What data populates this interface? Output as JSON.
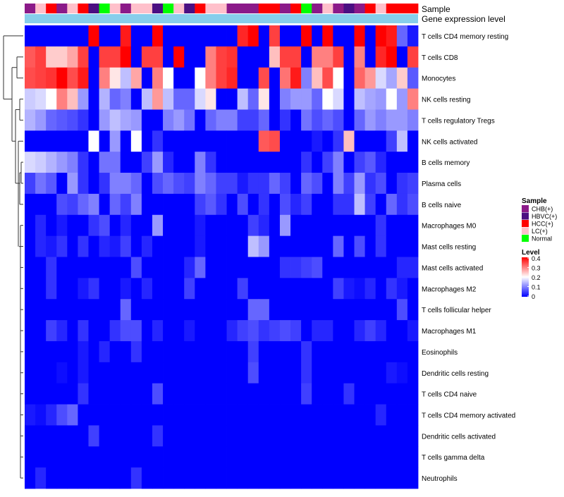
{
  "chart_data": {
    "type": "heatmap",
    "annotation_rows": [
      "Sample",
      "Gene expression level"
    ],
    "rows": [
      "T cells CD4 memory resting",
      "T cells CD8",
      "Monocytes",
      "NK cells resting",
      "T cells regulatory  Tregs",
      "NK cells activated",
      "B cells memory",
      "Plasma cells",
      "B cells naive",
      "Macrophages M0",
      "Mast cells resting",
      "Mast cells activated",
      "Macrophages M2",
      "T cells follicular helper",
      "Macrophages M1",
      "Eosinophils",
      "Dendritic cells resting",
      "T cells CD4 naive",
      "T cells CD4 memory activated",
      "Dendritic cells activated",
      "T cells gamma delta",
      "Neutrophils"
    ],
    "sample_colors": {
      "CHB(+)": "#8B1A89",
      "HBVC(+)": "#4B0F82",
      "HCC(+)": "#FF0000",
      "LC(+)": "#FFC0CB",
      "Normal": "#00FF00"
    },
    "gene_level_color": "#87CEEB",
    "sample_annotation": [
      "CHB(+)",
      "LC(+)",
      "HCC(+)",
      "CHB(+)",
      "LC(+)",
      "HCC(+)",
      "HBVC(+)",
      "Normal",
      "LC(+)",
      "CHB(+)",
      "LC(+)",
      "LC(+)",
      "HBVC(+)",
      "Normal",
      "LC(+)",
      "HBVC(+)",
      "HCC(+)",
      "LC(+)",
      "LC(+)",
      "CHB(+)",
      "CHB(+)",
      "CHB(+)",
      "HCC(+)",
      "HCC(+)",
      "CHB(+)",
      "HCC(+)",
      "Normal",
      "CHB(+)",
      "LC(+)",
      "CHB(+)",
      "HBVC(+)",
      "CHB(+)",
      "HCC(+)",
      "LC(+)",
      "HCC(+)",
      "HCC(+)",
      "HCC(+)"
    ],
    "values": [
      [
        0,
        0,
        0,
        0,
        0,
        0,
        0.4,
        0,
        0,
        0.38,
        0,
        0,
        0.4,
        0,
        0,
        0,
        0,
        0,
        0,
        0,
        0.37,
        0.4,
        0,
        0.35,
        0,
        0,
        0.4,
        0,
        0.4,
        0,
        0,
        0.4,
        0,
        0.4,
        0.38,
        0.08,
        0.02
      ],
      [
        0.33,
        0.35,
        0.24,
        0.24,
        0.27,
        0.35,
        0,
        0.35,
        0.35,
        0.4,
        0,
        0.35,
        0.35,
        0,
        0.4,
        0,
        0,
        0.3,
        0.35,
        0.36,
        0,
        0,
        0,
        0.25,
        0.35,
        0.35,
        0,
        0.3,
        0.3,
        0.35,
        0,
        0.3,
        0,
        0.37,
        0.4,
        0,
        0.35
      ],
      [
        0.34,
        0.35,
        0.36,
        0.4,
        0.34,
        0.38,
        0,
        0.3,
        0.22,
        0.15,
        0.27,
        0,
        0.3,
        0.2,
        0,
        0,
        0.2,
        0.3,
        0.35,
        0.37,
        0,
        0,
        0.34,
        0,
        0.31,
        0.38,
        0.1,
        0.25,
        0.34,
        0.2,
        0,
        0.32,
        0.28,
        0.17,
        0.13,
        0.24,
        0.07
      ],
      [
        0.16,
        0.17,
        0.2,
        0.3,
        0.25,
        0.12,
        0,
        0.14,
        0.08,
        0.1,
        0,
        0.15,
        0.28,
        0.15,
        0.08,
        0.08,
        0.17,
        0.22,
        0,
        0,
        0.15,
        0.08,
        0.22,
        0,
        0.1,
        0.12,
        0.12,
        0.08,
        0.2,
        0.17,
        0,
        0.15,
        0.13,
        0.12,
        0.2,
        0.12,
        0.3
      ],
      [
        0.14,
        0.12,
        0.08,
        0.07,
        0.06,
        0.04,
        0,
        0.12,
        0.15,
        0.13,
        0.12,
        0,
        0,
        0.1,
        0.12,
        0.09,
        0,
        0.08,
        0.1,
        0.1,
        0.05,
        0.05,
        0.08,
        0,
        0.04,
        0,
        0.09,
        0.06,
        0.08,
        0.06,
        0,
        0.08,
        0.12,
        0.1,
        0.12,
        0.12,
        0.1
      ],
      [
        0,
        0,
        0,
        0,
        0,
        0,
        0.2,
        0,
        0.12,
        0,
        0.2,
        0,
        0.04,
        0,
        0,
        0,
        0,
        0,
        0,
        0,
        0,
        0,
        0.33,
        0.34,
        0,
        0,
        0,
        0.02,
        0,
        0.04,
        0.25,
        0,
        0,
        0,
        0.05,
        0.15,
        0
      ],
      [
        0.17,
        0.16,
        0.14,
        0.12,
        0.1,
        0.04,
        0,
        0.09,
        0.09,
        0,
        0,
        0.05,
        0.12,
        0.03,
        0,
        0,
        0.1,
        0.04,
        0,
        0,
        0,
        0,
        0,
        0,
        0,
        0,
        0.04,
        0,
        0.05,
        0.1,
        0,
        0.05,
        0.07,
        0.03,
        0,
        0,
        0
      ],
      [
        0.05,
        0.09,
        0.07,
        0,
        0.12,
        0.04,
        0,
        0.04,
        0.1,
        0.1,
        0.08,
        0,
        0.06,
        0.08,
        0.06,
        0.05,
        0.1,
        0.08,
        0.05,
        0.05,
        0.02,
        0.04,
        0.04,
        0.08,
        0.05,
        0,
        0.08,
        0.06,
        0,
        0.1,
        0.05,
        0.12,
        0.04,
        0.06,
        0,
        0.04,
        0.05
      ],
      [
        0,
        0,
        0,
        0.06,
        0.05,
        0.08,
        0.1,
        0,
        0.08,
        0.05,
        0.1,
        0,
        0,
        0,
        0,
        0,
        0.05,
        0.07,
        0.04,
        0,
        0.06,
        0,
        0.04,
        0,
        0.06,
        0.03,
        0.05,
        0,
        0,
        0.04,
        0.04,
        0.15,
        0.05,
        0,
        0.08,
        0.04,
        0.06
      ],
      [
        0,
        0.03,
        0,
        0.02,
        0,
        0,
        0.04,
        0.06,
        0,
        0.03,
        0,
        0,
        0.12,
        0,
        0,
        0,
        0.02,
        0,
        0,
        0,
        0,
        0.05,
        0.03,
        0,
        0.12,
        0,
        0,
        0,
        0,
        0,
        0,
        0,
        0,
        0.04,
        0,
        0,
        0
      ],
      [
        0,
        0.03,
        0.02,
        0.04,
        0,
        0.04,
        0,
        0.03,
        0.02,
        0.05,
        0,
        0.03,
        0,
        0,
        0,
        0,
        0.02,
        0,
        0,
        0,
        0,
        0.15,
        0.12,
        0,
        0,
        0,
        0,
        0,
        0,
        0.08,
        0,
        0.06,
        0,
        0.04,
        0,
        0,
        0
      ],
      [
        0,
        0,
        0.04,
        0,
        0,
        0,
        0,
        0,
        0,
        0,
        0.06,
        0,
        0,
        0,
        0,
        0.03,
        0.08,
        0,
        0,
        0,
        0,
        0,
        0,
        0,
        0.04,
        0.04,
        0.05,
        0.06,
        0,
        0,
        0,
        0,
        0,
        0,
        0,
        0.03,
        0.03
      ],
      [
        0,
        0,
        0.04,
        0,
        0,
        0.02,
        0.04,
        0,
        0,
        0.02,
        0,
        0.03,
        0,
        0,
        0,
        0.05,
        0,
        0,
        0,
        0,
        0.05,
        0,
        0,
        0,
        0,
        0,
        0,
        0,
        0,
        0.05,
        0.02,
        0.01,
        0.03,
        0,
        0.04,
        0.02,
        0
      ],
      [
        0,
        0,
        0,
        0,
        0,
        0,
        0,
        0,
        0,
        0.08,
        0,
        0,
        0,
        0,
        0,
        0,
        0,
        0,
        0,
        0,
        0,
        0.08,
        0.08,
        0,
        0,
        0,
        0,
        0,
        0,
        0,
        0,
        0,
        0,
        0,
        0,
        0.06,
        0
      ],
      [
        0,
        0,
        0.05,
        0.03,
        0,
        0.04,
        0,
        0,
        0.04,
        0.06,
        0.06,
        0,
        0.03,
        0,
        0,
        0.02,
        0,
        0,
        0,
        0.03,
        0.05,
        0.06,
        0.04,
        0.05,
        0.06,
        0.05,
        0,
        0.03,
        0.03,
        0,
        0,
        0.03,
        0.05,
        0.03,
        0,
        0,
        0.02
      ],
      [
        0,
        0,
        0,
        0,
        0,
        0.02,
        0,
        0.03,
        0,
        0,
        0.04,
        0,
        0,
        0,
        0,
        0,
        0,
        0,
        0,
        0,
        0,
        0.05,
        0,
        0,
        0,
        0,
        0.04,
        0,
        0,
        0,
        0,
        0,
        0,
        0,
        0,
        0,
        0
      ],
      [
        0,
        0,
        0,
        0.01,
        0,
        0.02,
        0,
        0,
        0,
        0,
        0,
        0,
        0,
        0,
        0,
        0,
        0,
        0,
        0,
        0,
        0,
        0.06,
        0,
        0,
        0,
        0,
        0.04,
        0,
        0,
        0,
        0,
        0,
        0,
        0,
        0.02,
        0.01,
        0
      ],
      [
        0,
        0,
        0,
        0,
        0,
        0.04,
        0,
        0,
        0,
        0,
        0,
        0,
        0.06,
        0,
        0,
        0,
        0,
        0,
        0,
        0,
        0,
        0,
        0,
        0,
        0,
        0,
        0.05,
        0,
        0,
        0,
        0.04,
        0,
        0,
        0,
        0,
        0,
        0
      ],
      [
        0.02,
        0.01,
        0.03,
        0.06,
        0.08,
        0,
        0,
        0,
        0,
        0,
        0,
        0,
        0,
        0,
        0,
        0,
        0,
        0,
        0,
        0,
        0,
        0,
        0,
        0,
        0,
        0,
        0,
        0,
        0,
        0,
        0,
        0,
        0,
        0.03,
        0,
        0,
        0
      ],
      [
        0,
        0,
        0,
        0,
        0,
        0,
        0.05,
        0,
        0,
        0,
        0,
        0,
        0.04,
        0,
        0,
        0,
        0,
        0,
        0,
        0,
        0,
        0,
        0,
        0,
        0,
        0,
        0,
        0,
        0,
        0,
        0,
        0,
        0,
        0,
        0,
        0,
        0
      ],
      [
        0,
        0,
        0,
        0,
        0,
        0,
        0,
        0,
        0,
        0,
        0,
        0,
        0,
        0,
        0,
        0,
        0,
        0,
        0,
        0,
        0,
        0,
        0,
        0,
        0,
        0,
        0,
        0,
        0,
        0,
        0,
        0,
        0,
        0,
        0,
        0,
        0
      ],
      [
        0,
        0.03,
        0,
        0,
        0,
        0,
        0,
        0,
        0,
        0,
        0.04,
        0,
        0,
        0,
        0,
        0,
        0,
        0,
        0,
        0,
        0,
        0,
        0,
        0,
        0,
        0,
        0,
        0,
        0,
        0,
        0,
        0,
        0,
        0,
        0,
        0,
        0
      ]
    ],
    "color_scale": {
      "min": 0,
      "mid": 0.2,
      "max": 0.4,
      "low_color": "#0000FF",
      "mid_color": "#FFFFFF",
      "high_color": "#FF0000"
    },
    "legend": {
      "sample_title": "Sample",
      "sample_entries": [
        "CHB(+)",
        "HBVC(+)",
        "HCC(+)",
        "LC(+)",
        "Normal"
      ],
      "level_title": "Level",
      "level_ticks": [
        "0.4",
        "0.3",
        "0.2",
        "0.1",
        "0"
      ]
    }
  }
}
